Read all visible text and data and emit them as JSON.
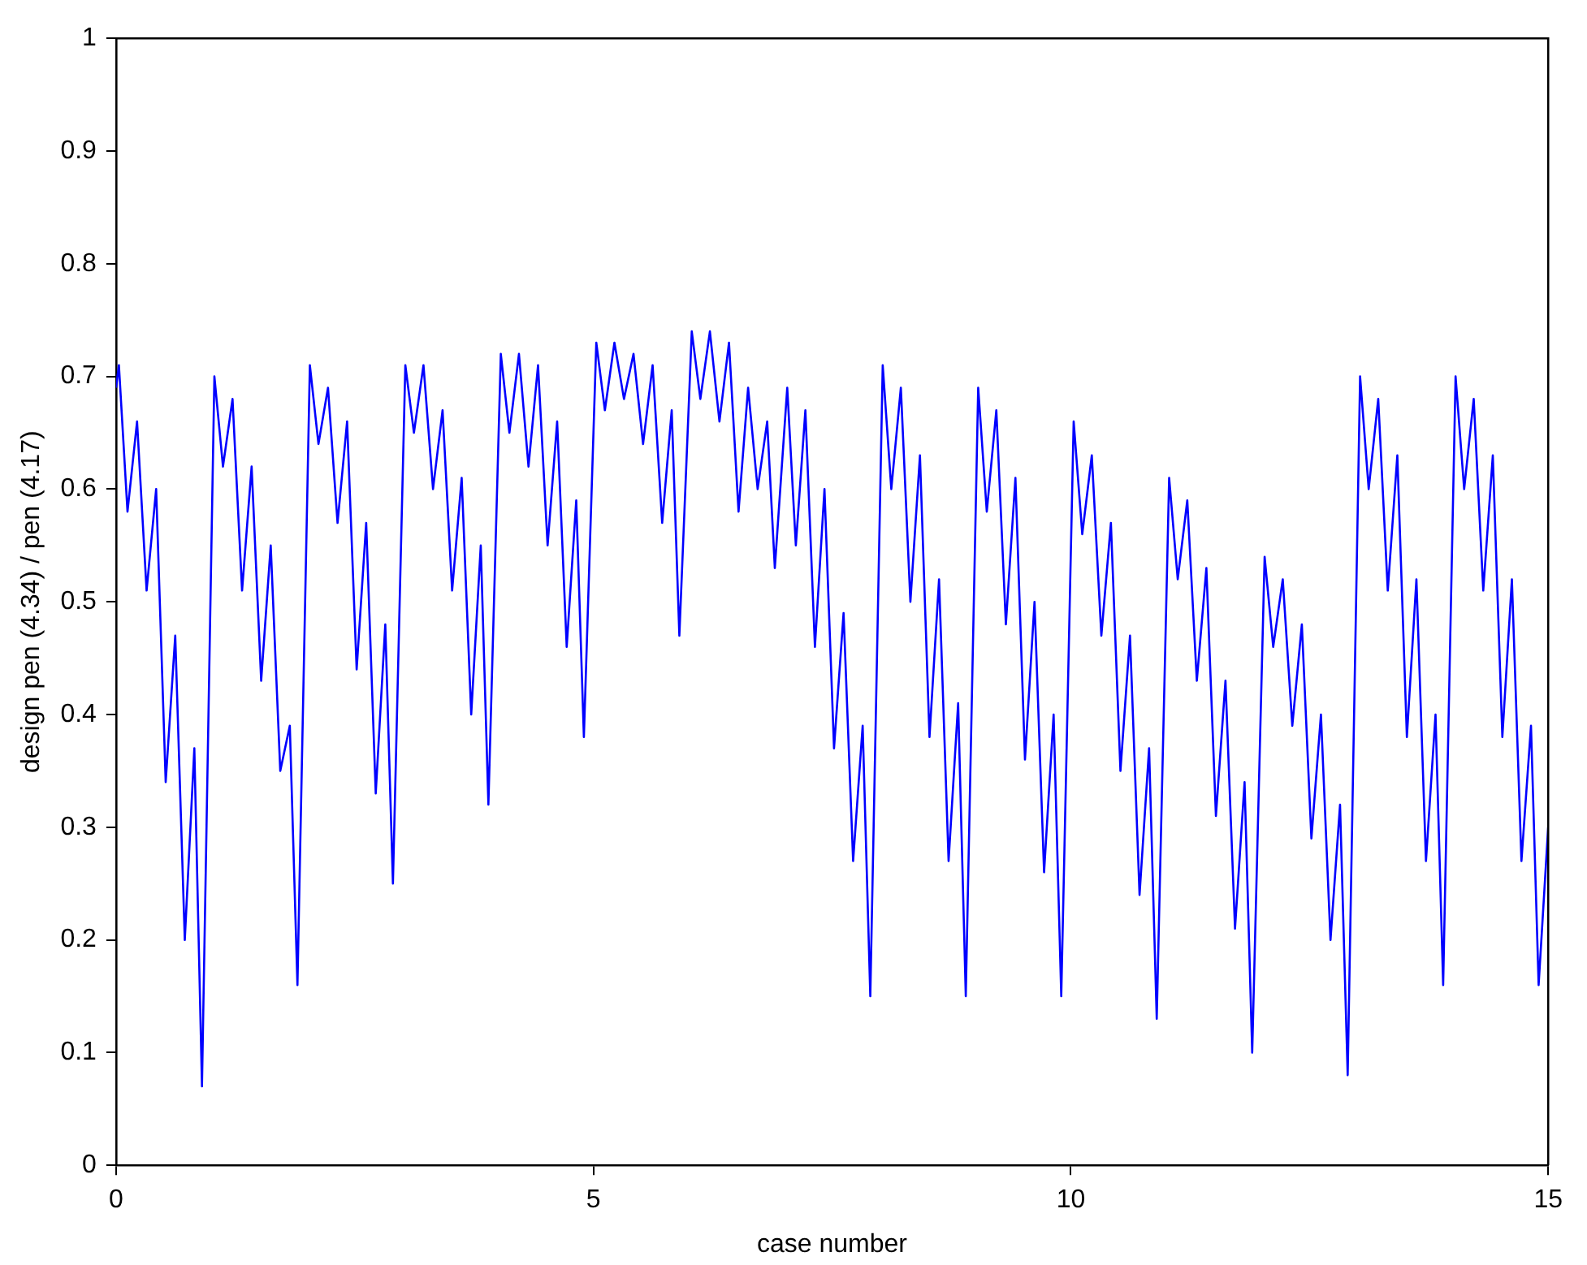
{
  "chart_data": {
    "type": "line",
    "xlabel": "case number",
    "ylabel": "design pen (4.34) / pen (4.17)",
    "xlim": [
      0,
      15
    ],
    "xticks": [
      0,
      5,
      10,
      15
    ],
    "ylim": [
      0,
      1
    ],
    "yticks": [
      0,
      0.1,
      0.2,
      0.3,
      0.4,
      0.5,
      0.6,
      0.7,
      0.8,
      0.9,
      1
    ],
    "grid": false,
    "legend": false,
    "marker": "none",
    "line_style": "solid",
    "series": [
      {
        "color": "#0000ff",
        "x": [
          0,
          0.03,
          0.12,
          0.22,
          0.32,
          0.42,
          0.52,
          0.62,
          0.72,
          0.82,
          0.9,
          1.03,
          1.12,
          1.22,
          1.32,
          1.42,
          1.52,
          1.62,
          1.72,
          1.82,
          1.9,
          2.03,
          2.12,
          2.22,
          2.32,
          2.42,
          2.52,
          2.62,
          2.72,
          2.82,
          2.9,
          3.03,
          3.12,
          3.22,
          3.32,
          3.42,
          3.52,
          3.62,
          3.72,
          3.82,
          3.9,
          4.03,
          4.12,
          4.22,
          4.32,
          4.42,
          4.52,
          4.62,
          4.72,
          4.82,
          4.9,
          5.03,
          5.12,
          5.22,
          5.32,
          5.42,
          5.52,
          5.62,
          5.72,
          5.82,
          5.9,
          6.03,
          6.12,
          6.22,
          6.32,
          6.42,
          6.52,
          6.62,
          6.72,
          6.82,
          6.9,
          7.03,
          7.12,
          7.22,
          7.32,
          7.42,
          7.52,
          7.62,
          7.72,
          7.82,
          7.9,
          8.03,
          8.12,
          8.22,
          8.32,
          8.42,
          8.52,
          8.62,
          8.72,
          8.82,
          8.9,
          9.03,
          9.12,
          9.22,
          9.32,
          9.42,
          9.52,
          9.62,
          9.72,
          9.82,
          9.9,
          10.03,
          10.12,
          10.22,
          10.32,
          10.42,
          10.52,
          10.62,
          10.72,
          10.82,
          10.9,
          11.03,
          11.12,
          11.22,
          11.32,
          11.42,
          11.52,
          11.62,
          11.72,
          11.82,
          11.9,
          12.03,
          12.12,
          12.22,
          12.32,
          12.42,
          12.52,
          12.62,
          12.72,
          12.82,
          12.9,
          13.03,
          13.12,
          13.22,
          13.32,
          13.42,
          13.52,
          13.62,
          13.72,
          13.82,
          13.9,
          14.03,
          14.12,
          14.22,
          14.32,
          14.42,
          14.52,
          14.62,
          14.72,
          14.82,
          14.9,
          15
        ],
        "values": [
          0.69,
          0.71,
          0.58,
          0.66,
          0.51,
          0.6,
          0.34,
          0.47,
          0.2,
          0.37,
          0.07,
          0.7,
          0.62,
          0.68,
          0.51,
          0.62,
          0.43,
          0.55,
          0.35,
          0.39,
          0.16,
          0.71,
          0.64,
          0.69,
          0.57,
          0.66,
          0.44,
          0.57,
          0.33,
          0.48,
          0.25,
          0.71,
          0.65,
          0.71,
          0.6,
          0.67,
          0.51,
          0.61,
          0.4,
          0.55,
          0.32,
          0.72,
          0.65,
          0.72,
          0.62,
          0.71,
          0.55,
          0.66,
          0.46,
          0.59,
          0.38,
          0.73,
          0.67,
          0.73,
          0.68,
          0.72,
          0.64,
          0.71,
          0.57,
          0.67,
          0.47,
          0.74,
          0.68,
          0.74,
          0.66,
          0.73,
          0.58,
          0.69,
          0.6,
          0.66,
          0.53,
          0.69,
          0.55,
          0.67,
          0.46,
          0.6,
          0.37,
          0.49,
          0.27,
          0.39,
          0.15,
          0.71,
          0.6,
          0.69,
          0.5,
          0.63,
          0.38,
          0.52,
          0.27,
          0.41,
          0.15,
          0.69,
          0.58,
          0.67,
          0.48,
          0.61,
          0.36,
          0.5,
          0.26,
          0.4,
          0.15,
          0.66,
          0.56,
          0.63,
          0.47,
          0.57,
          0.35,
          0.47,
          0.24,
          0.37,
          0.13,
          0.61,
          0.52,
          0.59,
          0.43,
          0.53,
          0.31,
          0.43,
          0.21,
          0.34,
          0.1,
          0.54,
          0.46,
          0.52,
          0.39,
          0.48,
          0.29,
          0.4,
          0.2,
          0.32,
          0.08,
          0.7,
          0.6,
          0.68,
          0.51,
          0.63,
          0.38,
          0.52,
          0.27,
          0.4,
          0.16,
          0.7,
          0.6,
          0.68,
          0.51,
          0.63,
          0.38,
          0.52,
          0.27,
          0.39,
          0.16,
          0.3
        ]
      }
    ]
  }
}
